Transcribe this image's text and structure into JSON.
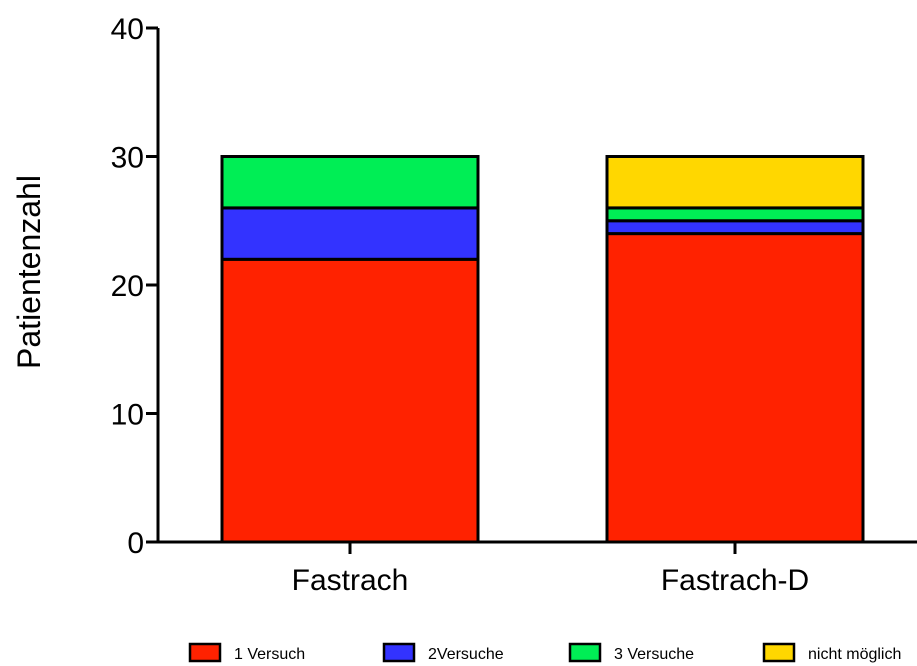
{
  "chart_data": {
    "type": "bar",
    "stacked": true,
    "categories": [
      "Fastrach",
      "Fastrach-D"
    ],
    "series": [
      {
        "name": "1 Versuch",
        "values": [
          22,
          24
        ],
        "color": "#ff2200"
      },
      {
        "name": "2Versuche",
        "values": [
          4,
          1
        ],
        "color": "#3333ff"
      },
      {
        "name": "3 Versuche",
        "values": [
          4,
          1
        ],
        "color": "#00ee55"
      },
      {
        "name": "nicht möglich",
        "values": [
          0,
          4
        ],
        "color": "#ffd700"
      }
    ],
    "ylabel": "Patientenzahl",
    "ylim": [
      0,
      40
    ],
    "yticks": [
      0,
      10,
      20,
      30,
      40
    ],
    "legend": "bottom",
    "grid": false
  }
}
